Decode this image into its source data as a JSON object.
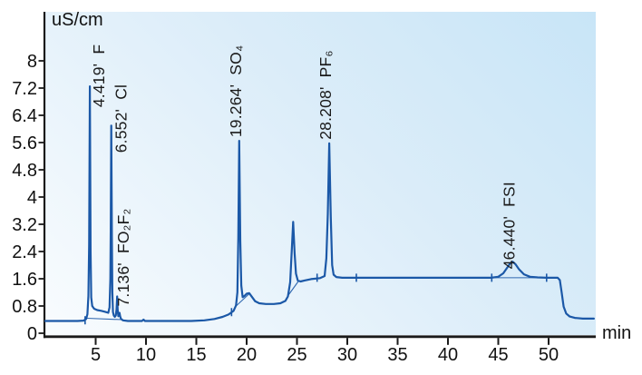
{
  "chart_data": {
    "type": "line",
    "title": "",
    "ylabel": "uS/cm",
    "xlabel": "min",
    "x_range": [
      0,
      54.5
    ],
    "y_range": [
      0,
      9.4
    ],
    "x_ticks": [
      5,
      10,
      15,
      20,
      25,
      30,
      35,
      40,
      45,
      50
    ],
    "y_ticks": [
      0,
      0.8,
      1.6,
      2.4,
      3.2,
      4,
      4.8,
      5.6,
      6.4,
      7.2,
      8
    ],
    "grid": false,
    "legend": false,
    "series_name": "conductivity trace",
    "line_color": "#1b58a7",
    "axis_color": "#1a1a1a",
    "text_color": "#111111",
    "bg_gradient": [
      "#c8e5f7",
      "#dcedf9",
      "#f9fcfe"
    ],
    "peaks": [
      {
        "rt": 4.419,
        "rt_label": "4.419",
        "ion": "F",
        "apex_uS": 7.25,
        "label_dx": 16,
        "label_dy": 23
      },
      {
        "rt": 6.552,
        "rt_label": "6.552",
        "ion": "Cl",
        "apex_uS": 6.1,
        "label_dx": 17,
        "label_dy": 30
      },
      {
        "rt": 7.136,
        "rt_label": "7.136",
        "ion": "FO₂F₂",
        "apex_uS": 1.08,
        "label_dx": 13,
        "label_dy": 11
      },
      {
        "rt": 19.264,
        "rt_label": "19.264",
        "ion": "SO₄",
        "apex_uS": 5.65,
        "label_dx": 2,
        "label_dy": -4
      },
      {
        "rt": 28.208,
        "rt_label": "28.208",
        "ion": "PF₆",
        "apex_uS": 5.58,
        "label_dx": 2,
        "label_dy": -4
      },
      {
        "rt": 46.44,
        "rt_label": "46.440",
        "ion": "FSI",
        "apex_uS": 2.1,
        "label_dx": 2,
        "label_dy": 8
      }
    ],
    "unlabeled_peaks": [
      {
        "rt": 24.62,
        "apex_uS": 3.27
      }
    ],
    "baseline_levels": {
      "start_uS": 0.36,
      "mid_uS": 0.86,
      "after_step_uS": 1.63,
      "end_uS": 0.43
    },
    "baseline_markers": [
      {
        "t": 3.95,
        "v": 0.38
      },
      {
        "t": 18.5,
        "v": 0.62
      },
      {
        "t": 27.0,
        "v": 1.63
      },
      {
        "t": 30.9,
        "v": 1.63
      },
      {
        "t": 44.35,
        "v": 1.63
      },
      {
        "t": 49.8,
        "v": 1.63
      }
    ],
    "integration_baselines": [
      [
        [
          4.12,
          0.44
        ],
        [
          7.55,
          0.4
        ]
      ],
      [
        [
          18.95,
          0.8
        ],
        [
          20.3,
          1.17
        ]
      ],
      [
        [
          24.15,
          1.12
        ],
        [
          25.15,
          1.53
        ]
      ],
      [
        [
          44.35,
          1.63
        ],
        [
          49.8,
          1.63
        ]
      ]
    ],
    "trace_points": [
      [
        0,
        0.36
      ],
      [
        1.5,
        0.36
      ],
      [
        3.2,
        0.36
      ],
      [
        3.8,
        0.37
      ],
      [
        4.05,
        0.42
      ],
      [
        4.18,
        0.56
      ],
      [
        4.28,
        1.1
      ],
      [
        4.35,
        2.6
      ],
      [
        4.419,
        7.25
      ],
      [
        4.5,
        2.4
      ],
      [
        4.56,
        1.05
      ],
      [
        4.66,
        0.8
      ],
      [
        4.85,
        0.72
      ],
      [
        5.15,
        0.68
      ],
      [
        5.55,
        0.66
      ],
      [
        5.95,
        0.63
      ],
      [
        6.25,
        0.6
      ],
      [
        6.38,
        0.76
      ],
      [
        6.46,
        1.6
      ],
      [
        6.5,
        3.0
      ],
      [
        6.552,
        6.1
      ],
      [
        6.61,
        2.8
      ],
      [
        6.66,
        1.2
      ],
      [
        6.72,
        0.62
      ],
      [
        6.8,
        0.52
      ],
      [
        6.9,
        0.48
      ],
      [
        7.0,
        0.52
      ],
      [
        7.07,
        0.7
      ],
      [
        7.136,
        1.08
      ],
      [
        7.19,
        0.68
      ],
      [
        7.25,
        0.5
      ],
      [
        7.31,
        0.56
      ],
      [
        7.37,
        0.6
      ],
      [
        7.43,
        0.5
      ],
      [
        7.52,
        0.42
      ],
      [
        7.7,
        0.38
      ],
      [
        8.2,
        0.36
      ],
      [
        9.6,
        0.36
      ],
      [
        9.75,
        0.4
      ],
      [
        9.9,
        0.36
      ],
      [
        12,
        0.36
      ],
      [
        14.5,
        0.36
      ],
      [
        15.8,
        0.38
      ],
      [
        16.8,
        0.42
      ],
      [
        17.6,
        0.48
      ],
      [
        18.2,
        0.55
      ],
      [
        18.7,
        0.66
      ],
      [
        18.95,
        0.82
      ],
      [
        19.08,
        1.2
      ],
      [
        19.17,
        2.8
      ],
      [
        19.264,
        5.65
      ],
      [
        19.37,
        2.7
      ],
      [
        19.47,
        1.4
      ],
      [
        19.6,
        1.06
      ],
      [
        19.8,
        1.1
      ],
      [
        20.0,
        1.16
      ],
      [
        20.25,
        1.18
      ],
      [
        20.55,
        1.06
      ],
      [
        20.85,
        0.94
      ],
      [
        21.25,
        0.88
      ],
      [
        21.9,
        0.86
      ],
      [
        22.7,
        0.86
      ],
      [
        23.35,
        0.88
      ],
      [
        23.85,
        0.95
      ],
      [
        24.1,
        1.08
      ],
      [
        24.32,
        1.5
      ],
      [
        24.48,
        2.4
      ],
      [
        24.62,
        3.27
      ],
      [
        24.77,
        2.35
      ],
      [
        24.9,
        1.75
      ],
      [
        25.08,
        1.55
      ],
      [
        25.35,
        1.52
      ],
      [
        25.75,
        1.55
      ],
      [
        26.4,
        1.59
      ],
      [
        27.3,
        1.62
      ],
      [
        27.75,
        1.68
      ],
      [
        27.92,
        2.2
      ],
      [
        28.06,
        3.5
      ],
      [
        28.208,
        5.58
      ],
      [
        28.36,
        3.4
      ],
      [
        28.5,
        2.0
      ],
      [
        28.64,
        1.72
      ],
      [
        28.9,
        1.65
      ],
      [
        29.5,
        1.63
      ],
      [
        31,
        1.63
      ],
      [
        34,
        1.63
      ],
      [
        38,
        1.63
      ],
      [
        42,
        1.63
      ],
      [
        44.3,
        1.63
      ],
      [
        45.0,
        1.66
      ],
      [
        45.5,
        1.76
      ],
      [
        45.95,
        1.95
      ],
      [
        46.2,
        2.06
      ],
      [
        46.44,
        2.1
      ],
      [
        46.7,
        2.03
      ],
      [
        47.05,
        1.88
      ],
      [
        47.55,
        1.73
      ],
      [
        48.15,
        1.66
      ],
      [
        48.9,
        1.64
      ],
      [
        49.8,
        1.63
      ],
      [
        50.9,
        1.63
      ],
      [
        51.12,
        1.56
      ],
      [
        51.3,
        1.2
      ],
      [
        51.5,
        0.78
      ],
      [
        51.75,
        0.58
      ],
      [
        52.1,
        0.49
      ],
      [
        52.6,
        0.45
      ],
      [
        53.4,
        0.43
      ],
      [
        54.5,
        0.43
      ]
    ]
  }
}
